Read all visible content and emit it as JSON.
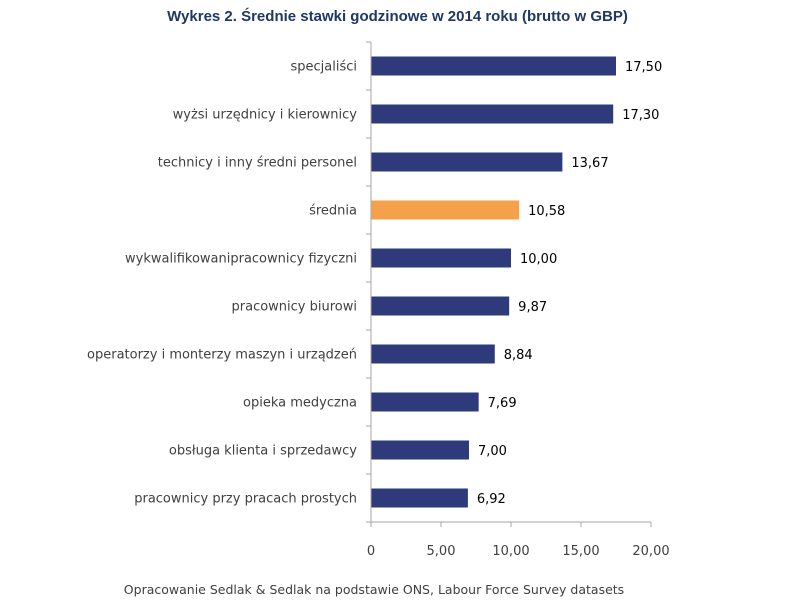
{
  "title": "Wykres 2. Średnie stawki godzinowe w 2014 roku (brutto w GBP)",
  "source": "Opracowanie Sedlak & Sedlak na podstawie ONS, Labour Force Survey datasets",
  "colors": {
    "bar": "#2e3a7a",
    "highlight": "#f5a04a",
    "axis": "#a6a6a6"
  },
  "chart_data": {
    "type": "bar",
    "orientation": "horizontal",
    "title": "Wykres 2. Średnie stawki godzinowe w 2014 roku (brutto w GBP)",
    "categories": [
      "specjaliści",
      "wyżsi urzędnicy i kierownicy",
      "technicy i inny średni personel",
      "średnia",
      "wykwalifikowanipracownicy fizyczni",
      "pracownicy biurowi",
      "operatorzy i monterzy maszyn i urządzeń",
      "opieka medyczna",
      "obsługa klienta i sprzedawcy",
      "pracownicy przy pracach prostych"
    ],
    "values": [
      17.5,
      17.3,
      13.67,
      10.58,
      10.0,
      9.87,
      8.84,
      7.69,
      7.0,
      6.92
    ],
    "value_labels": [
      "17,50",
      "17,30",
      "13,67",
      "10,58",
      "10,00",
      "9,87",
      "8,84",
      "7,69",
      "7,00",
      "6,92"
    ],
    "highlight_index": 3,
    "xlim": [
      0,
      20
    ],
    "xticks": [
      0,
      5,
      10,
      15,
      20
    ],
    "xtick_labels": [
      "0",
      "5,00",
      "10,00",
      "15,00",
      "20,00"
    ],
    "grid": false,
    "legend": "none"
  }
}
